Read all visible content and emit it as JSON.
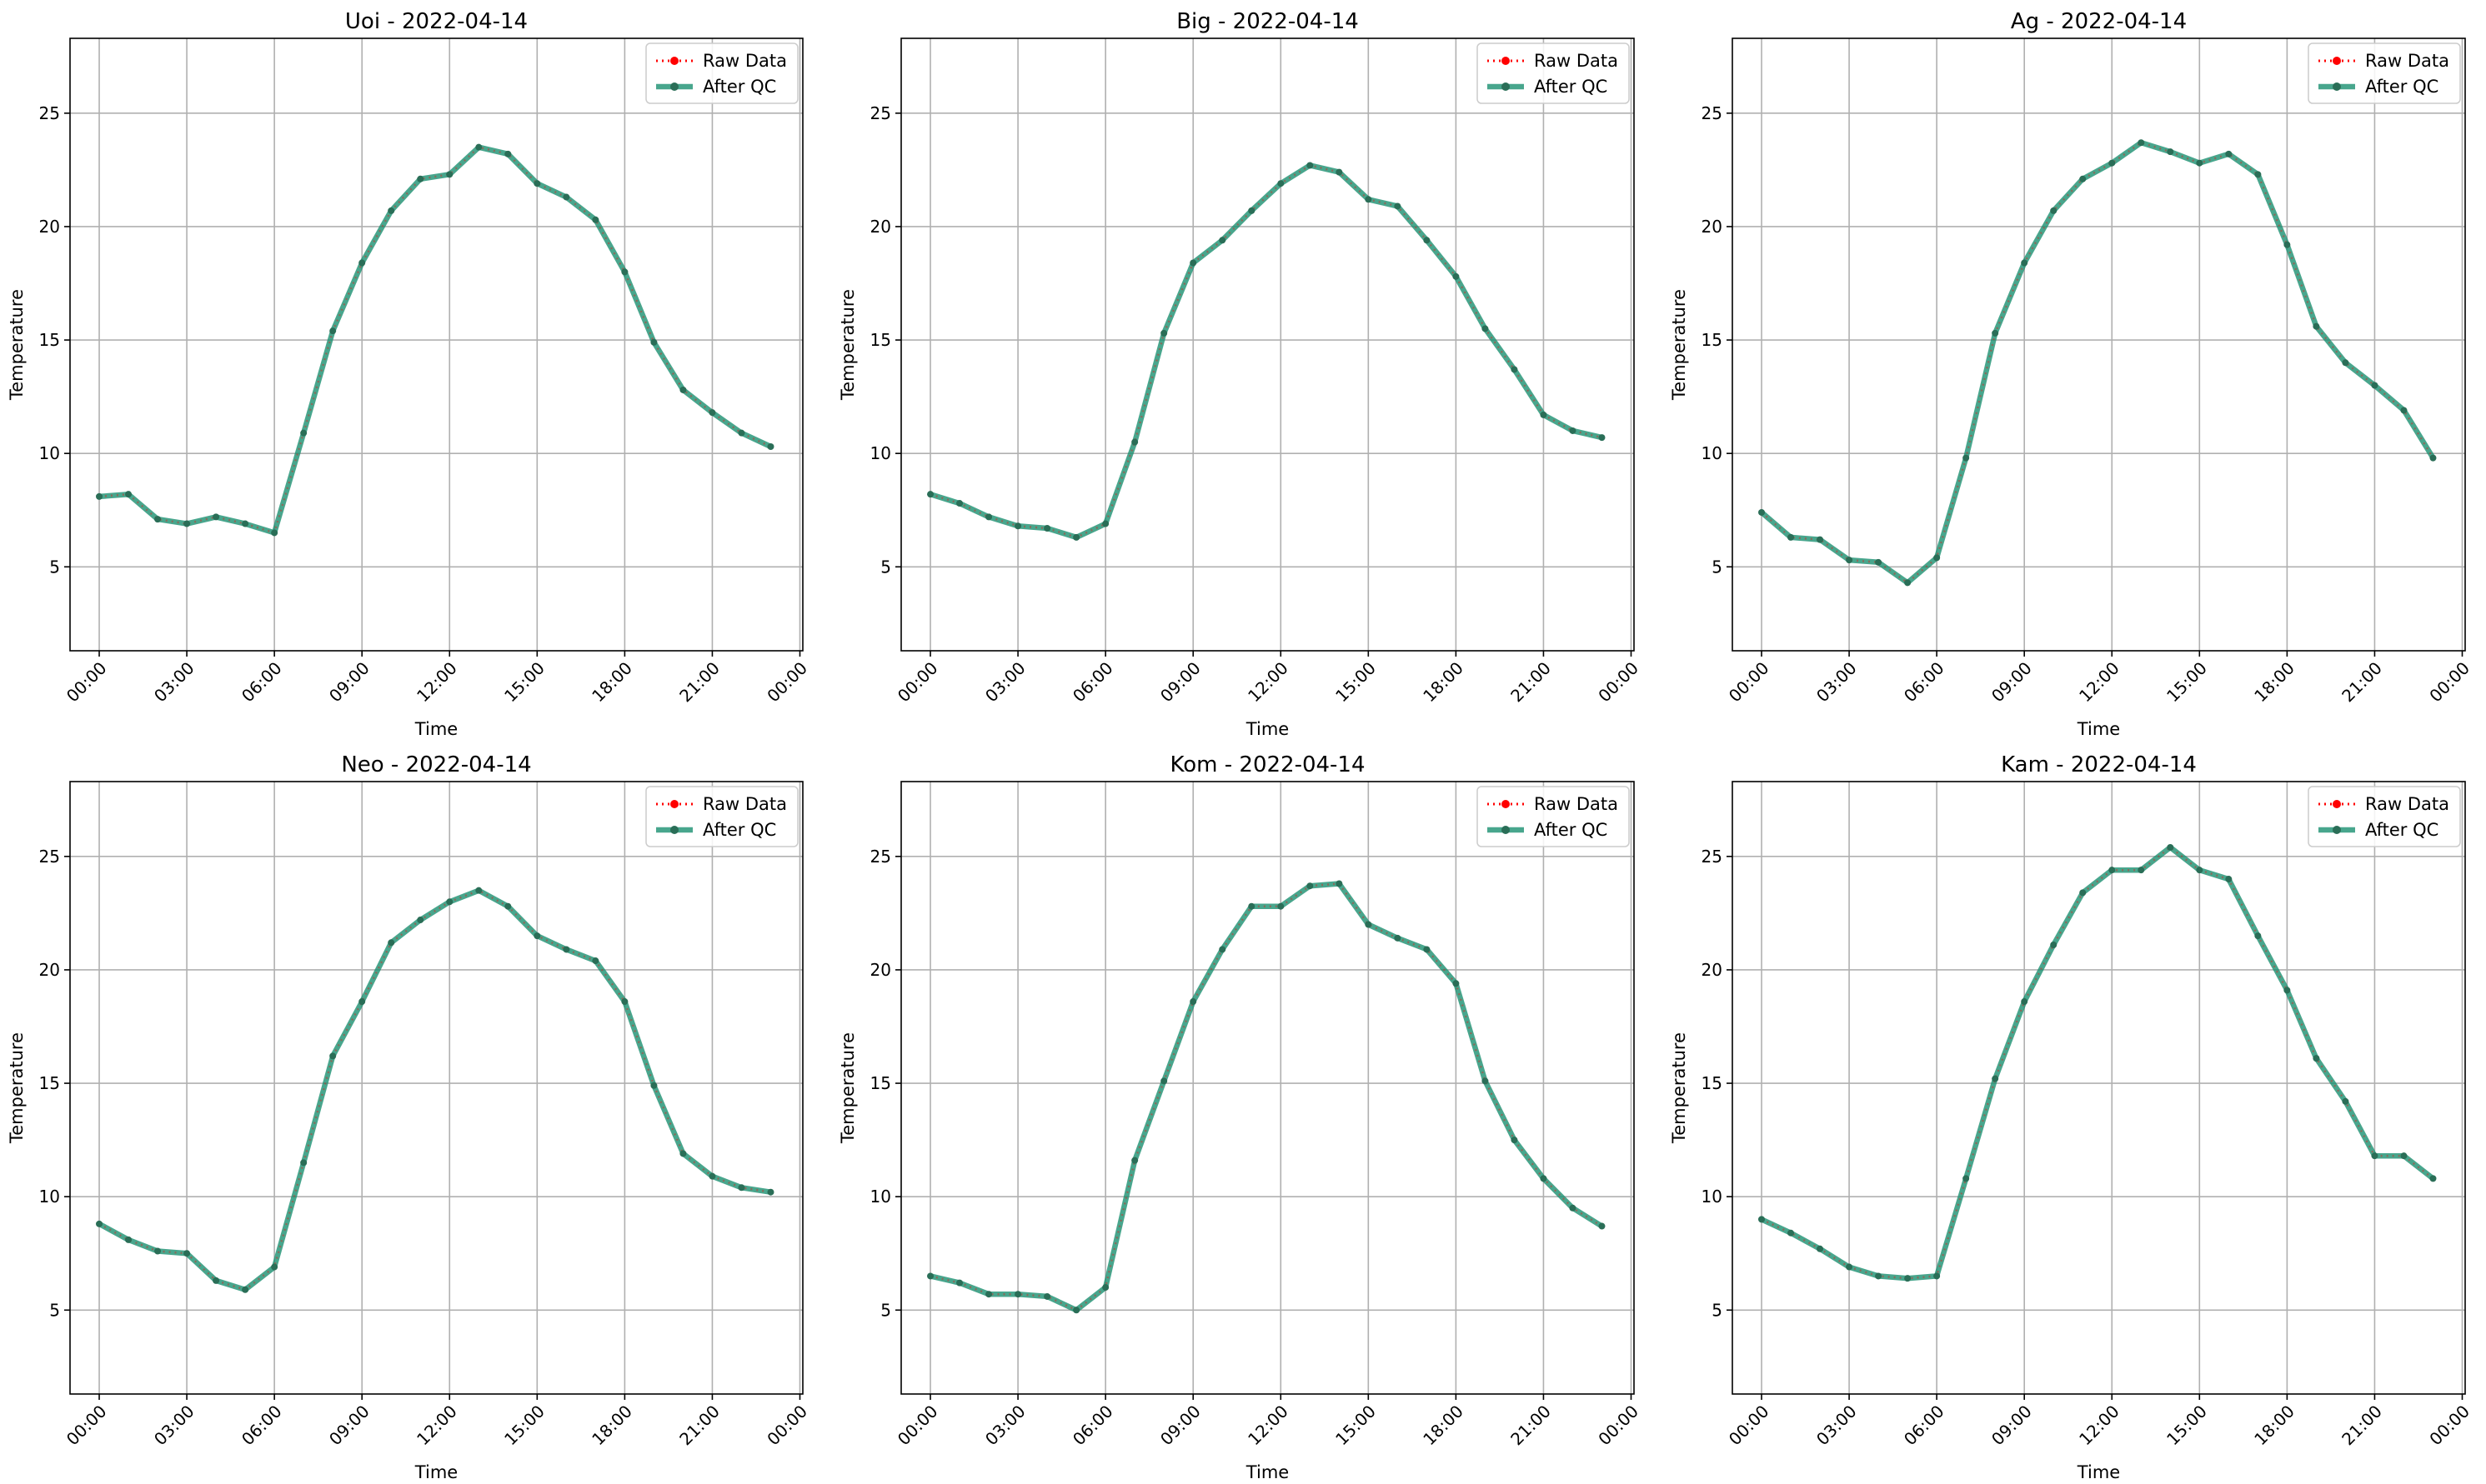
{
  "figure": {
    "type": "line",
    "xlabel": "Time",
    "ylabel": "Temperature",
    "xlim": [
      -1.0,
      24.1
    ],
    "ylim": [
      1.3,
      28.3
    ],
    "yticks": [
      5,
      10,
      15,
      20,
      25
    ],
    "xticks": [
      0,
      3,
      6,
      9,
      12,
      15,
      18,
      21,
      24
    ],
    "xtick_labels": [
      "00:00",
      "03:00",
      "06:00",
      "09:00",
      "12:00",
      "15:00",
      "18:00",
      "21:00",
      "00:00"
    ],
    "grid": true,
    "legend": {
      "position": "upper right",
      "entries": [
        "Raw Data",
        "After QC"
      ]
    },
    "colors": {
      "raw": "#ff0000",
      "qc": "#1a9070",
      "axes": "#000000",
      "grid": "#b0b0b0"
    }
  },
  "chart_data": [
    {
      "type": "line",
      "title": "Uoi - 2022-04-14",
      "xlabel": "Time",
      "ylabel": "Temperature",
      "x": [
        "00:00",
        "01:00",
        "02:00",
        "03:00",
        "04:00",
        "05:00",
        "06:00",
        "07:00",
        "08:00",
        "09:00",
        "10:00",
        "11:00",
        "12:00",
        "13:00",
        "14:00",
        "15:00",
        "16:00",
        "17:00",
        "18:00",
        "19:00",
        "20:00",
        "21:00",
        "22:00",
        "23:00"
      ],
      "series": [
        {
          "name": "Raw Data",
          "values": [
            8.1,
            8.2,
            7.1,
            6.9,
            7.2,
            6.9,
            6.5,
            10.9,
            15.4,
            18.4,
            20.7,
            22.1,
            22.3,
            23.5,
            23.2,
            21.9,
            21.3,
            20.3,
            18.0,
            14.9,
            12.8,
            11.8,
            10.9,
            10.3
          ]
        },
        {
          "name": "After QC",
          "values": [
            8.1,
            8.2,
            7.1,
            6.9,
            7.2,
            6.9,
            6.5,
            10.9,
            15.4,
            18.4,
            20.7,
            22.1,
            22.3,
            23.5,
            23.2,
            21.9,
            21.3,
            20.3,
            18.0,
            14.9,
            12.8,
            11.8,
            10.9,
            10.3
          ]
        }
      ]
    },
    {
      "type": "line",
      "title": "Big - 2022-04-14",
      "xlabel": "Time",
      "ylabel": "Temperature",
      "x": [
        "00:00",
        "01:00",
        "02:00",
        "03:00",
        "04:00",
        "05:00",
        "06:00",
        "07:00",
        "08:00",
        "09:00",
        "10:00",
        "11:00",
        "12:00",
        "13:00",
        "14:00",
        "15:00",
        "16:00",
        "17:00",
        "18:00",
        "19:00",
        "20:00",
        "21:00",
        "22:00",
        "23:00"
      ],
      "series": [
        {
          "name": "Raw Data",
          "values": [
            8.2,
            7.8,
            7.2,
            6.8,
            6.7,
            6.3,
            6.9,
            10.5,
            15.3,
            18.4,
            19.4,
            20.7,
            21.9,
            22.7,
            22.4,
            21.2,
            20.9,
            19.4,
            17.8,
            15.5,
            13.7,
            11.7,
            11.0,
            10.7
          ]
        },
        {
          "name": "After QC",
          "values": [
            8.2,
            7.8,
            7.2,
            6.8,
            6.7,
            6.3,
            6.9,
            10.5,
            15.3,
            18.4,
            19.4,
            20.7,
            21.9,
            22.7,
            22.4,
            21.2,
            20.9,
            19.4,
            17.8,
            15.5,
            13.7,
            11.7,
            11.0,
            10.7
          ]
        }
      ]
    },
    {
      "type": "line",
      "title": "Ag - 2022-04-14",
      "xlabel": "Time",
      "ylabel": "Temperature",
      "x": [
        "00:00",
        "01:00",
        "02:00",
        "03:00",
        "04:00",
        "05:00",
        "06:00",
        "07:00",
        "08:00",
        "09:00",
        "10:00",
        "11:00",
        "12:00",
        "13:00",
        "14:00",
        "15:00",
        "16:00",
        "17:00",
        "18:00",
        "19:00",
        "20:00",
        "21:00",
        "22:00",
        "23:00"
      ],
      "series": [
        {
          "name": "Raw Data",
          "values": [
            7.4,
            6.3,
            6.2,
            5.3,
            5.2,
            4.3,
            5.4,
            9.8,
            15.3,
            18.4,
            20.7,
            22.1,
            22.8,
            23.7,
            23.3,
            22.8,
            23.2,
            22.3,
            19.2,
            15.6,
            14.0,
            13.0,
            11.9,
            9.8
          ]
        },
        {
          "name": "After QC",
          "values": [
            7.4,
            6.3,
            6.2,
            5.3,
            5.2,
            4.3,
            5.4,
            9.8,
            15.3,
            18.4,
            20.7,
            22.1,
            22.8,
            23.7,
            23.3,
            22.8,
            23.2,
            22.3,
            19.2,
            15.6,
            14.0,
            13.0,
            11.9,
            9.8
          ]
        }
      ]
    },
    {
      "type": "line",
      "title": "Neo - 2022-04-14",
      "xlabel": "Time",
      "ylabel": "Temperature",
      "x": [
        "00:00",
        "01:00",
        "02:00",
        "03:00",
        "04:00",
        "05:00",
        "06:00",
        "07:00",
        "08:00",
        "09:00",
        "10:00",
        "11:00",
        "12:00",
        "13:00",
        "14:00",
        "15:00",
        "16:00",
        "17:00",
        "18:00",
        "19:00",
        "20:00",
        "21:00",
        "22:00",
        "23:00"
      ],
      "series": [
        {
          "name": "Raw Data",
          "values": [
            8.8,
            8.1,
            7.6,
            7.5,
            6.3,
            5.9,
            6.9,
            11.5,
            16.2,
            18.6,
            21.2,
            22.2,
            23.0,
            23.5,
            22.8,
            21.5,
            20.9,
            20.4,
            18.6,
            14.9,
            11.9,
            10.9,
            10.4,
            10.2
          ]
        },
        {
          "name": "After QC",
          "values": [
            8.8,
            8.1,
            7.6,
            7.5,
            6.3,
            5.9,
            6.9,
            11.5,
            16.2,
            18.6,
            21.2,
            22.2,
            23.0,
            23.5,
            22.8,
            21.5,
            20.9,
            20.4,
            18.6,
            14.9,
            11.9,
            10.9,
            10.4,
            10.2
          ]
        }
      ]
    },
    {
      "type": "line",
      "title": "Kom - 2022-04-14",
      "xlabel": "Time",
      "ylabel": "Temperature",
      "x": [
        "00:00",
        "01:00",
        "02:00",
        "03:00",
        "04:00",
        "05:00",
        "06:00",
        "07:00",
        "08:00",
        "09:00",
        "10:00",
        "11:00",
        "12:00",
        "13:00",
        "14:00",
        "15:00",
        "16:00",
        "17:00",
        "18:00",
        "19:00",
        "20:00",
        "21:00",
        "22:00",
        "23:00"
      ],
      "series": [
        {
          "name": "Raw Data",
          "values": [
            6.5,
            6.2,
            5.7,
            5.7,
            5.6,
            5.0,
            6.0,
            11.6,
            15.1,
            18.6,
            20.9,
            22.8,
            22.8,
            23.7,
            23.8,
            22.0,
            21.4,
            20.9,
            19.4,
            15.1,
            12.5,
            10.8,
            9.5,
            8.7
          ]
        },
        {
          "name": "After QC",
          "values": [
            6.5,
            6.2,
            5.7,
            5.7,
            5.6,
            5.0,
            6.0,
            11.6,
            15.1,
            18.6,
            20.9,
            22.8,
            22.8,
            23.7,
            23.8,
            22.0,
            21.4,
            20.9,
            19.4,
            15.1,
            12.5,
            10.8,
            9.5,
            8.7
          ]
        }
      ]
    },
    {
      "type": "line",
      "title": "Kam - 2022-04-14",
      "xlabel": "Time",
      "ylabel": "Temperature",
      "x": [
        "00:00",
        "01:00",
        "02:00",
        "03:00",
        "04:00",
        "05:00",
        "06:00",
        "07:00",
        "08:00",
        "09:00",
        "10:00",
        "11:00",
        "12:00",
        "13:00",
        "14:00",
        "15:00",
        "16:00",
        "17:00",
        "18:00",
        "19:00",
        "20:00",
        "21:00",
        "22:00",
        "23:00"
      ],
      "series": [
        {
          "name": "Raw Data",
          "values": [
            9.0,
            8.4,
            7.7,
            6.9,
            6.5,
            6.4,
            6.5,
            10.8,
            15.2,
            18.6,
            21.1,
            23.4,
            24.4,
            24.4,
            25.4,
            24.4,
            24.0,
            21.5,
            19.1,
            16.1,
            14.2,
            11.8,
            11.8,
            10.8
          ]
        },
        {
          "name": "After QC",
          "values": [
            9.0,
            8.4,
            7.7,
            6.9,
            6.5,
            6.4,
            6.5,
            10.8,
            15.2,
            18.6,
            21.1,
            23.4,
            24.4,
            24.4,
            25.4,
            24.4,
            24.0,
            21.5,
            19.1,
            16.1,
            14.2,
            11.8,
            11.8,
            10.8
          ]
        }
      ]
    }
  ]
}
